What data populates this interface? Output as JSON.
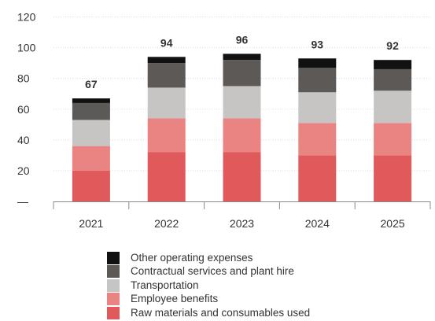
{
  "chart_data": {
    "type": "bar",
    "stacked": true,
    "categories": [
      "2021",
      "2022",
      "2023",
      "2024",
      "2025"
    ],
    "series": [
      {
        "name": "Raw materials and consumables used",
        "color": "#e05a5c",
        "values": [
          20,
          32,
          32,
          30,
          30
        ]
      },
      {
        "name": "Employee benefits",
        "color": "#e98483",
        "values": [
          16,
          22,
          22,
          21,
          21
        ]
      },
      {
        "name": "Transportation",
        "color": "#c6c5c4",
        "values": [
          17,
          20,
          21,
          20,
          21
        ]
      },
      {
        "name": "Contractual services and plant hire",
        "color": "#5c5957",
        "values": [
          11,
          16,
          17,
          16,
          14
        ]
      },
      {
        "name": "Other operating expenses",
        "color": "#111111",
        "values": [
          3,
          4,
          4,
          6,
          6
        ]
      }
    ],
    "totals": [
      "67",
      "94",
      "96",
      "93",
      "92"
    ],
    "y_ticks": [
      "—",
      "20",
      "40",
      "60",
      "80",
      "100",
      "120"
    ],
    "ylim": [
      0,
      120
    ],
    "grid": true,
    "legend_position": "bottom"
  }
}
